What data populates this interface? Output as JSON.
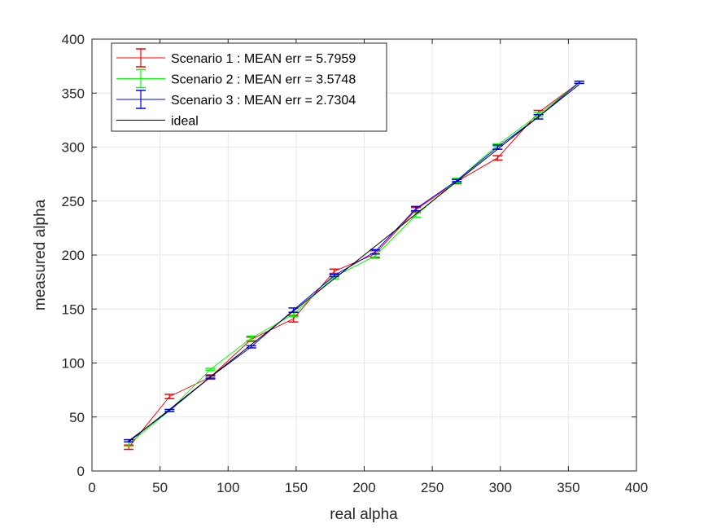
{
  "chart_data": {
    "type": "line",
    "title": "",
    "xlabel": "real alpha",
    "ylabel": "measured alpha",
    "xlim": [
      0,
      400
    ],
    "ylim": [
      0,
      400
    ],
    "xticks": [
      "0",
      "50",
      "100",
      "150",
      "200",
      "250",
      "300",
      "350",
      "400"
    ],
    "yticks": [
      "0",
      "50",
      "100",
      "150",
      "200",
      "250",
      "300",
      "350",
      "400"
    ],
    "grid": true,
    "legend_position": "top-left",
    "x": [
      27,
      57,
      87,
      117,
      148,
      178,
      208,
      238,
      268,
      298,
      328,
      358
    ],
    "series": [
      {
        "name": "Scenario 1 : MEAN err = 5.7959",
        "color": "#ff0000",
        "values": [
          22,
          69,
          87,
          122,
          141,
          185,
          201,
          242,
          268,
          290,
          332,
          360
        ],
        "errors": [
          2,
          2,
          2,
          2,
          3,
          2,
          3,
          2,
          2,
          2,
          2,
          1
        ]
      },
      {
        "name": "Scenario 2 : MEAN err = 3.5748",
        "color": "#00ff00",
        "values": [
          25,
          56,
          94,
          123,
          145,
          180,
          199,
          237,
          269,
          302,
          330,
          360
        ],
        "errors": [
          2,
          1,
          1,
          2,
          2,
          2,
          2,
          2,
          2,
          1,
          2,
          1
        ]
      },
      {
        "name": "Scenario 3 : MEAN err = 2.7304",
        "color": "#0000ff",
        "values": [
          28,
          56,
          87,
          115,
          149,
          181,
          203,
          243,
          269,
          300,
          328,
          360
        ],
        "errors": [
          1,
          1,
          1,
          1,
          2,
          1,
          2,
          2,
          1,
          2,
          2,
          1
        ]
      },
      {
        "name": "ideal",
        "color": "#000000",
        "values": [
          27,
          57,
          87,
          117,
          148,
          178,
          208,
          238,
          268,
          298,
          328,
          358
        ]
      }
    ]
  }
}
